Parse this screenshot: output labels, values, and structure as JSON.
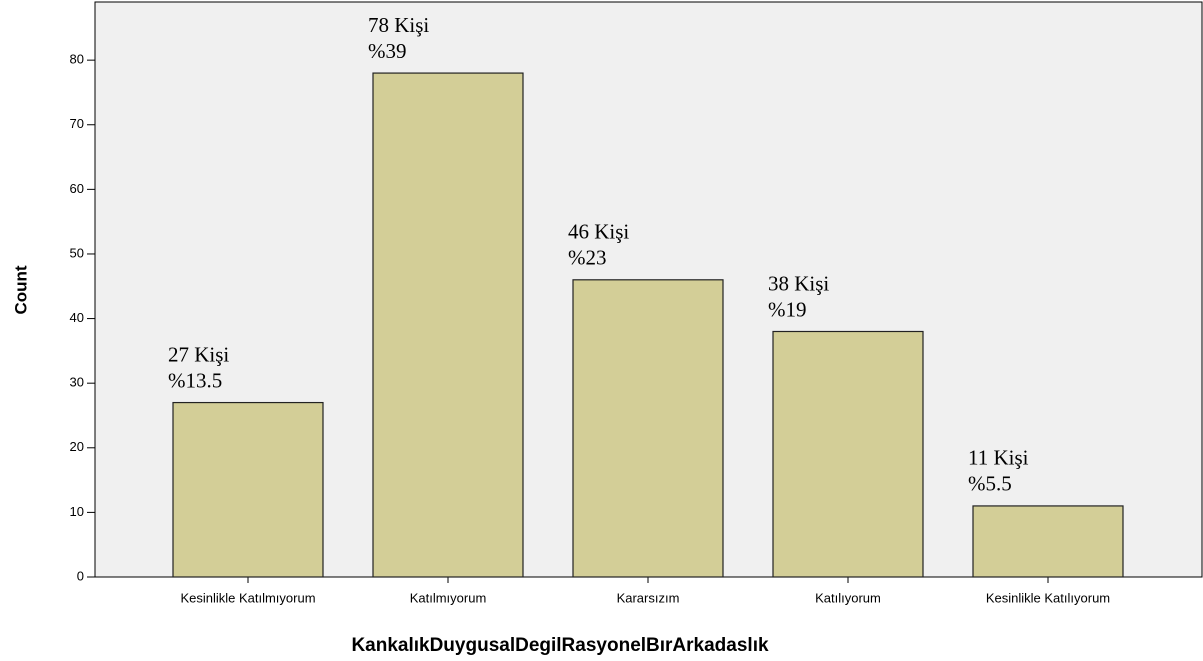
{
  "chart_data": {
    "type": "bar",
    "x_label": "KankalıkDuygusalDegilRasyonelBırArkadaslık",
    "y_label": "Count",
    "categories": [
      "Kesinlikle Katılmıyorum",
      "Katılmıyorum",
      "Kararsızım",
      "Katılıyorum",
      "Kesinlikle Katılıyorum"
    ],
    "values": [
      27,
      78,
      46,
      38,
      11
    ],
    "value_labels": [
      "27 Kişi",
      "78 Kişi",
      "46 Kişi",
      "38 Kişi",
      "11 Kişi"
    ],
    "annotations": [
      "%13.5",
      "%39",
      "%23",
      "%19",
      "%5.5"
    ],
    "color": "#d3ce97",
    "ylim": [
      0,
      89
    ],
    "yticks": [
      0,
      10,
      20,
      30,
      40,
      50,
      60,
      70,
      80
    ],
    "grid": false
  }
}
